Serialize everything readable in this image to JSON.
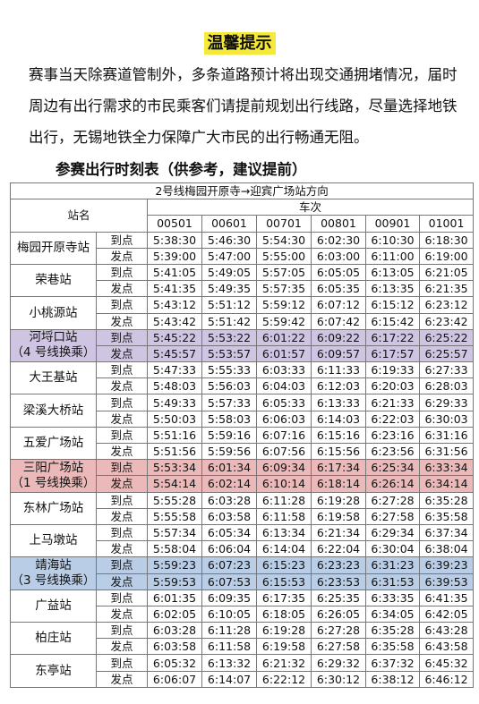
{
  "notice": {
    "title": "温馨提示",
    "body": "赛事当天除赛道管制外，多条道路预计将出现交通拥堵情况，届时周边有出行需求的市民乘客们请提前规划出行线路，尽量选择地铁出行，无锡地铁全力保障广大市民的出行畅通无阻。"
  },
  "table": {
    "title": "参赛出行时刻表（供参考，建议提前）",
    "direction": "2号线梅园开原寺→迎宾广场站方向",
    "header_station": "站名",
    "header_trains": "车次",
    "train_ids": [
      "00501",
      "00601",
      "00701",
      "00801",
      "00901",
      "01001"
    ],
    "arrive_label": "到点",
    "depart_label": "发点",
    "stations": [
      {
        "name": "梅园开原寺站",
        "name2": "",
        "highlight": "",
        "arrive": [
          "5:38:30",
          "5:46:30",
          "5:54:30",
          "6:02:30",
          "6:10:30",
          "6:18:30"
        ],
        "depart": [
          "5:39:00",
          "5:47:00",
          "5:55:00",
          "6:03:00",
          "6:11:00",
          "6:19:00"
        ]
      },
      {
        "name": "荣巷站",
        "name2": "",
        "highlight": "",
        "arrive": [
          "5:41:05",
          "5:49:05",
          "5:57:05",
          "6:05:05",
          "6:13:05",
          "6:21:05"
        ],
        "depart": [
          "5:41:35",
          "5:49:35",
          "5:57:35",
          "6:05:35",
          "6:13:35",
          "6:21:35"
        ]
      },
      {
        "name": "小桃源站",
        "name2": "",
        "highlight": "",
        "arrive": [
          "5:43:12",
          "5:51:12",
          "5:59:12",
          "6:07:12",
          "6:15:12",
          "6:23:12"
        ],
        "depart": [
          "5:43:42",
          "5:51:42",
          "5:59:42",
          "6:07:42",
          "6:15:42",
          "6:23:42"
        ]
      },
      {
        "name": "河埒口站",
        "name2": "（4 号线换乘）",
        "highlight": "purple",
        "arrive": [
          "5:45:22",
          "5:53:22",
          "6:01:22",
          "6:09:22",
          "6:17:22",
          "6:25:22"
        ],
        "depart": [
          "5:45:57",
          "5:53:57",
          "6:01:57",
          "6:09:57",
          "6:17:57",
          "6:25:57"
        ]
      },
      {
        "name": "大王基站",
        "name2": "",
        "highlight": "",
        "arrive": [
          "5:47:33",
          "5:55:33",
          "6:03:33",
          "6:11:33",
          "6:19:33",
          "6:27:33"
        ],
        "depart": [
          "5:48:03",
          "5:56:03",
          "6:04:03",
          "6:12:03",
          "6:20:03",
          "6:28:03"
        ]
      },
      {
        "name": "梁溪大桥站",
        "name2": "",
        "highlight": "",
        "arrive": [
          "5:49:33",
          "5:57:33",
          "6:05:33",
          "6:13:33",
          "6:21:33",
          "6:29:33"
        ],
        "depart": [
          "5:50:03",
          "5:58:03",
          "6:06:03",
          "6:14:03",
          "6:22:03",
          "6:30:03"
        ]
      },
      {
        "name": "五爱广场站",
        "name2": "",
        "highlight": "",
        "arrive": [
          "5:51:16",
          "5:59:16",
          "6:07:16",
          "6:15:16",
          "6:23:16",
          "6:31:16"
        ],
        "depart": [
          "5:51:56",
          "5:59:56",
          "6:07:56",
          "6:15:56",
          "6:23:56",
          "6:31:56"
        ]
      },
      {
        "name": "三阳广场站",
        "name2": "（1 号线换乘）",
        "highlight": "red",
        "arrive": [
          "5:53:34",
          "6:01:34",
          "6:09:34",
          "6:17:34",
          "6:25:34",
          "6:33:34"
        ],
        "depart": [
          "5:54:14",
          "6:02:14",
          "6:10:14",
          "6:18:14",
          "6:26:14",
          "6:34:14"
        ]
      },
      {
        "name": "东林广场站",
        "name2": "",
        "highlight": "",
        "arrive": [
          "5:55:28",
          "6:03:28",
          "6:11:28",
          "6:19:28",
          "6:27:28",
          "6:35:28"
        ],
        "depart": [
          "5:55:58",
          "6:03:58",
          "6:11:58",
          "6:19:58",
          "6:27:58",
          "6:35:58"
        ]
      },
      {
        "name": "上马墩站",
        "name2": "",
        "highlight": "",
        "arrive": [
          "5:57:34",
          "6:05:34",
          "6:13:34",
          "6:21:34",
          "6:29:34",
          "6:37:34"
        ],
        "depart": [
          "5:58:04",
          "6:06:04",
          "6:14:04",
          "6:22:04",
          "6:30:04",
          "6:38:04"
        ]
      },
      {
        "name": "靖海站",
        "name2": "（3 号线换乘）",
        "highlight": "blue",
        "arrive": [
          "5:59:23",
          "6:07:23",
          "6:15:23",
          "6:23:23",
          "6:31:23",
          "6:39:23"
        ],
        "depart": [
          "5:59:53",
          "6:07:53",
          "6:15:53",
          "6:23:53",
          "6:31:53",
          "6:39:53"
        ]
      },
      {
        "name": "广益站",
        "name2": "",
        "highlight": "",
        "arrive": [
          "6:01:35",
          "6:09:35",
          "6:17:35",
          "6:25:35",
          "6:33:35",
          "6:41:35"
        ],
        "depart": [
          "6:02:05",
          "6:10:05",
          "6:18:05",
          "6:26:05",
          "6:34:05",
          "6:42:05"
        ]
      },
      {
        "name": "柏庄站",
        "name2": "",
        "highlight": "",
        "arrive": [
          "6:03:28",
          "6:11:28",
          "6:19:28",
          "6:27:28",
          "6:35:28",
          "6:43:28"
        ],
        "depart": [
          "6:03:58",
          "6:11:58",
          "6:19:58",
          "6:27:58",
          "6:35:58",
          "6:43:58"
        ]
      },
      {
        "name": "东亭站",
        "name2": "",
        "highlight": "",
        "arrive": [
          "6:05:32",
          "6:13:32",
          "6:21:32",
          "6:29:32",
          "6:37:32",
          "6:45:32"
        ],
        "depart": [
          "6:06:07",
          "6:14:07",
          "6:22:12",
          "6:30:12",
          "6:38:12",
          "6:46:12"
        ]
      }
    ]
  }
}
